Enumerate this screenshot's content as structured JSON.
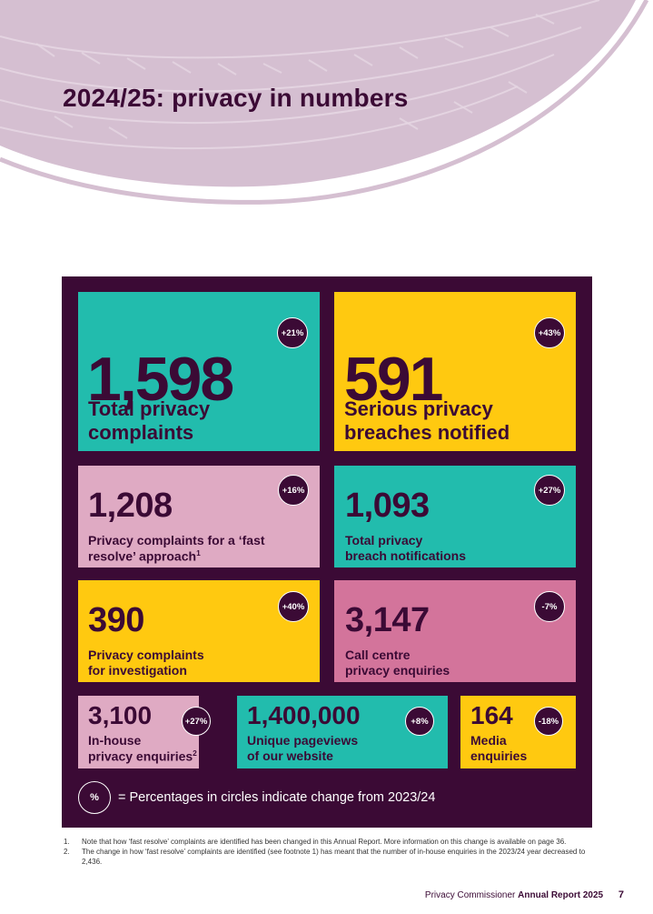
{
  "title": "2024/25: privacy in numbers",
  "tiles": [
    {
      "value": "1,598",
      "label_lines": [
        "Total privacy",
        "complaints"
      ],
      "change": "+21%"
    },
    {
      "value": "591",
      "label_lines": [
        "Serious privacy",
        "breaches notified"
      ],
      "change": "+43%"
    },
    {
      "value": "1,208",
      "label_lines": [
        "Privacy complaints for a ‘fast",
        "resolve’ approach"
      ],
      "footnote_ref": "1",
      "change": "+16%"
    },
    {
      "value": "1,093",
      "label_lines": [
        "Total privacy",
        "breach notifications"
      ],
      "change": "+27%"
    },
    {
      "value": "390",
      "label_lines": [
        "Privacy complaints",
        "for investigation"
      ],
      "change": "+40%"
    },
    {
      "value": "3,147",
      "label_lines": [
        "Call centre",
        "privacy enquiries"
      ],
      "change": "-7%"
    },
    {
      "value": "3,100",
      "label_lines": [
        "In-house",
        "privacy enquiries"
      ],
      "footnote_ref": "2",
      "change": "+27%"
    },
    {
      "value": "1,400,000",
      "label_lines": [
        "Unique pageviews",
        "of our website"
      ],
      "change": "+8%"
    },
    {
      "value": "164",
      "label_lines": [
        "Media",
        "enquiries"
      ],
      "change": "-18%"
    }
  ],
  "legend": {
    "symbol": "%",
    "text": "= Percentages in circles indicate change from 2023/24"
  },
  "footnotes": [
    {
      "num": "1.",
      "text": "Note that how ‘fast resolve’ complaints are identified has been changed in this Annual Report. More information on this change is available on page 36."
    },
    {
      "num": "2.",
      "text": "The change in how ‘fast resolve’ complaints are identified (see footnote 1) has meant that the number of in-house enquiries in the 2023/24 year decreased to 2,436."
    }
  ],
  "footer": {
    "publisher": "Privacy Commissioner",
    "report": "Annual Report 2025",
    "page": "7"
  },
  "colors": {
    "dark_purple": "#3b0a35",
    "teal": "#22bcad",
    "yellow": "#ffc910",
    "pink": "#dfaac3",
    "rose": "#d3749b",
    "arc": "#d5bfd1"
  }
}
